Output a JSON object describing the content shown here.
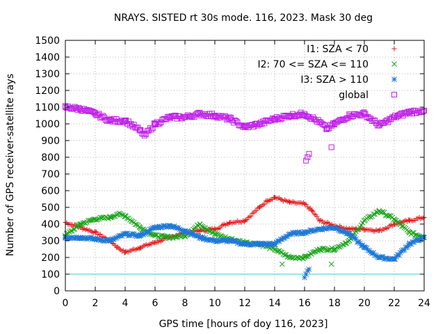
{
  "chart_data": {
    "type": "scatter",
    "title": "NRAYS. SISTED rt 30s mode. 116, 2023. Mask 30 deg",
    "xlabel": "GPS time [hours of doy 116, 2023]",
    "ylabel": "Number of GPS receiver-satellite rays",
    "xlim": [
      0,
      24
    ],
    "ylim": [
      0,
      1500
    ],
    "x_ticks": [
      "0",
      "2",
      "4",
      "6",
      "8",
      "10",
      "12",
      "14",
      "16",
      "18",
      "20",
      "22",
      "24"
    ],
    "y_ticks": [
      "0",
      "100",
      "200",
      "300",
      "400",
      "500",
      "600",
      "700",
      "800",
      "900",
      "1000",
      "1100",
      "1200",
      "1300",
      "1400",
      "1500"
    ],
    "grid": true,
    "legend_position": "top-right",
    "threshold_line": {
      "y": 100,
      "color": "#33cccc"
    },
    "series": [
      {
        "name": "I1: SZA < 70",
        "marker": "+",
        "color": "#e41a1c",
        "x": [
          0,
          1,
          2,
          3,
          3.5,
          4,
          5,
          6,
          7,
          8,
          9,
          10,
          11,
          12,
          13,
          13.5,
          14,
          15,
          16,
          16.5,
          17,
          18,
          19,
          20,
          21,
          22,
          23,
          24
        ],
        "y": [
          410,
          380,
          350,
          300,
          260,
          230,
          260,
          290,
          320,
          350,
          360,
          370,
          410,
          420,
          500,
          540,
          560,
          530,
          520,
          480,
          420,
          390,
          370,
          370,
          360,
          400,
          420,
          440
        ]
      },
      {
        "name": "I2: 70 <= SZA <= 110",
        "marker": "x",
        "color": "#1aa31a",
        "x": [
          0,
          1,
          2,
          3,
          3.5,
          4,
          5,
          6,
          7,
          8,
          9,
          10,
          11,
          12,
          13,
          14,
          15,
          16,
          17,
          18,
          19,
          20,
          21,
          22,
          23,
          24
        ],
        "y": [
          330,
          400,
          430,
          440,
          460,
          450,
          380,
          330,
          320,
          330,
          400,
          340,
          310,
          290,
          280,
          250,
          200,
          200,
          250,
          250,
          300,
          420,
          480,
          430,
          350,
          320
        ]
      },
      {
        "name": "I3: SZA > 110",
        "marker": "*",
        "color": "#1f78d6",
        "x": [
          0,
          1,
          2,
          3,
          4,
          5,
          6,
          7,
          8,
          9,
          10,
          11,
          12,
          13,
          14,
          15,
          16,
          17,
          18,
          19,
          20,
          21,
          22,
          23,
          24
        ],
        "y": [
          320,
          320,
          310,
          300,
          340,
          330,
          380,
          390,
          360,
          320,
          300,
          300,
          280,
          280,
          280,
          340,
          350,
          370,
          380,
          340,
          260,
          200,
          190,
          280,
          320
        ]
      },
      {
        "name": "global",
        "marker": "square",
        "color": "#c020e8",
        "x": [
          0,
          1,
          2,
          3,
          4,
          5,
          5.3,
          6,
          7,
          8,
          9,
          10,
          11,
          12,
          13,
          14,
          15,
          16,
          17,
          17.5,
          18,
          19,
          20,
          21,
          22,
          23,
          24
        ],
        "y": [
          1100,
          1090,
          1060,
          1020,
          1020,
          960,
          930,
          1000,
          1040,
          1040,
          1060,
          1050,
          1030,
          980,
          1000,
          1030,
          1050,
          1060,
          1010,
          970,
          1000,
          1050,
          1060,
          990,
          1040,
          1070,
          1080
        ]
      }
    ],
    "annotations": [
      {
        "series": "global",
        "x": [
          16.1,
          16.2,
          16.3,
          17.8
        ],
        "y": [
          780,
          800,
          820,
          860
        ]
      },
      {
        "series": "I3: SZA > 110",
        "x": [
          16.0,
          16.1,
          16.2,
          16.3
        ],
        "y": [
          80,
          100,
          120,
          130
        ]
      },
      {
        "series": "I2: 70 <= SZA <= 110",
        "x": [
          14.5,
          17.8
        ],
        "y": [
          160,
          160
        ]
      }
    ]
  }
}
